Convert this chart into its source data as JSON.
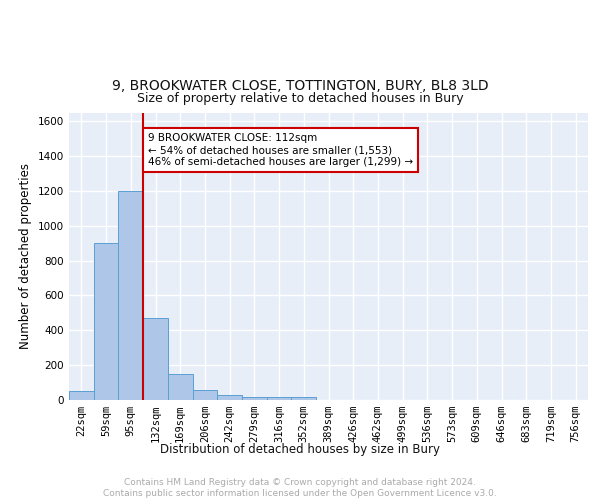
{
  "title1": "9, BROOKWATER CLOSE, TOTTINGTON, BURY, BL8 3LD",
  "title2": "Size of property relative to detached houses in Bury",
  "xlabel": "Distribution of detached houses by size in Bury",
  "ylabel": "Number of detached properties",
  "bin_labels": [
    "22sqm",
    "59sqm",
    "95sqm",
    "132sqm",
    "169sqm",
    "206sqm",
    "242sqm",
    "279sqm",
    "316sqm",
    "352sqm",
    "389sqm",
    "426sqm",
    "462sqm",
    "499sqm",
    "536sqm",
    "573sqm",
    "609sqm",
    "646sqm",
    "683sqm",
    "719sqm",
    "756sqm"
  ],
  "bin_counts": [
    50,
    900,
    1200,
    470,
    150,
    60,
    30,
    20,
    15,
    20,
    0,
    0,
    0,
    0,
    0,
    0,
    0,
    0,
    0,
    0,
    0
  ],
  "bar_color": "#aec6e8",
  "bar_edge_color": "#5a9fd4",
  "red_line_x": 2.5,
  "annotation_text": "9 BROOKWATER CLOSE: 112sqm\n← 54% of detached houses are smaller (1,553)\n46% of semi-detached houses are larger (1,299) →",
  "annotation_box_color": "#ffffff",
  "annotation_box_edge_color": "#cc0000",
  "ylim": [
    0,
    1650
  ],
  "yticks": [
    0,
    200,
    400,
    600,
    800,
    1000,
    1200,
    1400,
    1600
  ],
  "background_color": "#e8eef8",
  "grid_color": "#ffffff",
  "footer_text": "Contains HM Land Registry data © Crown copyright and database right 2024.\nContains public sector information licensed under the Open Government Licence v3.0.",
  "title1_fontsize": 10,
  "title2_fontsize": 9,
  "xlabel_fontsize": 8.5,
  "ylabel_fontsize": 8.5,
  "tick_fontsize": 7.5,
  "annotation_fontsize": 7.5,
  "footer_fontsize": 6.5
}
